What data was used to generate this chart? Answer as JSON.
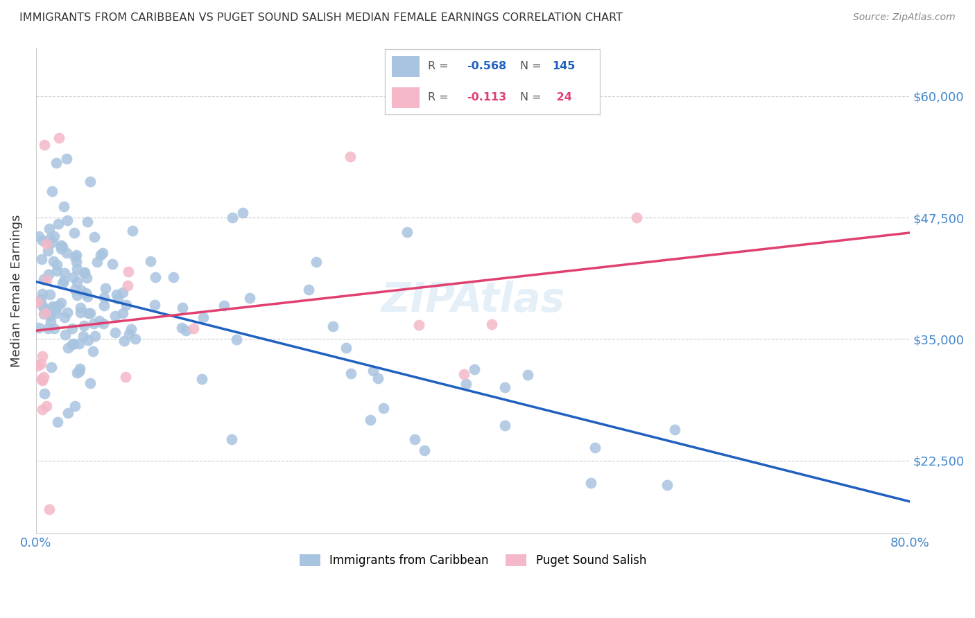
{
  "title": "IMMIGRANTS FROM CARIBBEAN VS PUGET SOUND SALISH MEDIAN FEMALE EARNINGS CORRELATION CHART",
  "source": "Source: ZipAtlas.com",
  "ylabel": "Median Female Earnings",
  "xmin": 0.0,
  "xmax": 0.8,
  "ymin": 15000,
  "ymax": 65000,
  "yticks": [
    22500,
    35000,
    47500,
    60000
  ],
  "ytick_labels": [
    "$22,500",
    "$35,000",
    "$47,500",
    "$60,000"
  ],
  "xtick_labels": [
    "0.0%",
    "80.0%"
  ],
  "blue_color": "#a8c4e0",
  "pink_color": "#f4b8c8",
  "blue_line_color": "#2060c0",
  "pink_line_color": "#e04070",
  "title_color": "#333333",
  "axis_label_color": "#333333",
  "tick_label_color": "#4488cc",
  "background_color": "#ffffff",
  "grid_color": "#cccccc",
  "seed": 42,
  "n_blue": 145,
  "n_pink": 24,
  "r_blue": -0.568,
  "r_pink": -0.113
}
